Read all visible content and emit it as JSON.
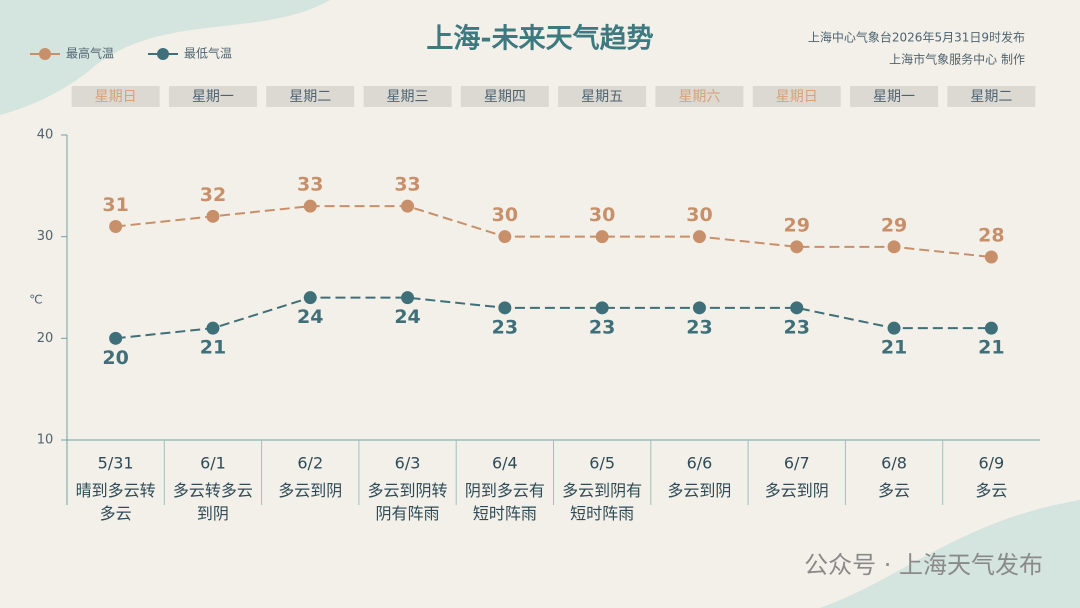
{
  "chart_data": {
    "type": "line",
    "title": "上海-未来天气趋势",
    "source": [
      "上海中心气象台2026年5月31日9时发布",
      "上海市气象服务中心 制作"
    ],
    "watermark": "公众号 · 上海天气发布",
    "y_unit": "℃",
    "categories": [
      "5/31",
      "6/1",
      "6/2",
      "6/3",
      "6/4",
      "6/5",
      "6/6",
      "6/7",
      "6/8",
      "6/9"
    ],
    "weekdays": [
      "星期日",
      "星期一",
      "星期二",
      "星期三",
      "星期四",
      "星期五",
      "星期六",
      "星期日",
      "星期一",
      "星期二"
    ],
    "weekday_colors": [
      "#d9a07a",
      "#4f6470",
      "#4f6470",
      "#4f6470",
      "#4f6470",
      "#4f6470",
      "#d9a07a",
      "#d9a07a",
      "#4f6470",
      "#4f6470"
    ],
    "weather": [
      "晴到多云转多云",
      "多云转多云到阴",
      "多云到阴",
      "多云到阴转阴有阵雨",
      "阴到多云有短时阵雨",
      "多云到阴有短时阵雨",
      "多云到阴",
      "多云到阴",
      "多云",
      "多云"
    ],
    "series": [
      {
        "name": "最高气温",
        "color": "#c8906a",
        "values": [
          31,
          32,
          33,
          33,
          30,
          30,
          30,
          29,
          29,
          28
        ]
      },
      {
        "name": "最低气温",
        "color": "#3f6f79",
        "values": [
          20,
          21,
          24,
          24,
          23,
          23,
          23,
          23,
          21,
          21
        ]
      }
    ],
    "ylim": [
      10,
      40
    ],
    "yticks": [
      10,
      20,
      30,
      40
    ]
  }
}
